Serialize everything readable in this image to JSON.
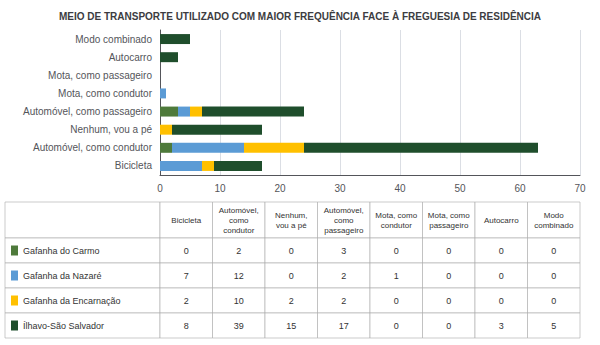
{
  "chart_data": {
    "type": "bar",
    "orientation": "horizontal",
    "stacked": true,
    "title": "MEIO DE TRANSPORTE UTILIZADO COM MAIOR FREQUÊNCIA FACE À FREGUESIA DE RESIDÊNCIA",
    "categories": [
      "Bicicleta",
      "Automóvel, como condutor",
      "Nenhum, vou a pé",
      "Automóvel, como passageiro",
      "Mota, como condutor",
      "Mota, como passageiro",
      "Autocarro",
      "Modo combinado"
    ],
    "series": [
      {
        "name": "Gafanha do Carmo",
        "color": "#4e7a3b",
        "values": [
          0,
          2,
          0,
          3,
          0,
          0,
          0,
          0
        ]
      },
      {
        "name": "Gafanha da Nazaré",
        "color": "#5b9bd5",
        "values": [
          7,
          12,
          0,
          2,
          1,
          0,
          0,
          0
        ]
      },
      {
        "name": "Gafanha da Encarnação",
        "color": "#ffc000",
        "values": [
          2,
          10,
          2,
          2,
          0,
          0,
          0,
          0
        ]
      },
      {
        "name": "Ílhavo-São Salvador",
        "color": "#1f4e2c",
        "values": [
          8,
          39,
          15,
          17,
          0,
          0,
          3,
          5
        ]
      }
    ],
    "table_columns": [
      "Bicicleta",
      "Automóvel,\ncomo\ncondutor",
      "Nenhum,\nvou a pé",
      "Automóvel,\ncomo\npassageiro",
      "Mota, como\ncondutor",
      "Mota, como\npassageiro",
      "Autocarro",
      "Modo\ncombinado"
    ],
    "xlim": [
      0,
      70
    ],
    "xticks": [
      0,
      10,
      20,
      30,
      40,
      50,
      60,
      70
    ],
    "grid": true
  }
}
